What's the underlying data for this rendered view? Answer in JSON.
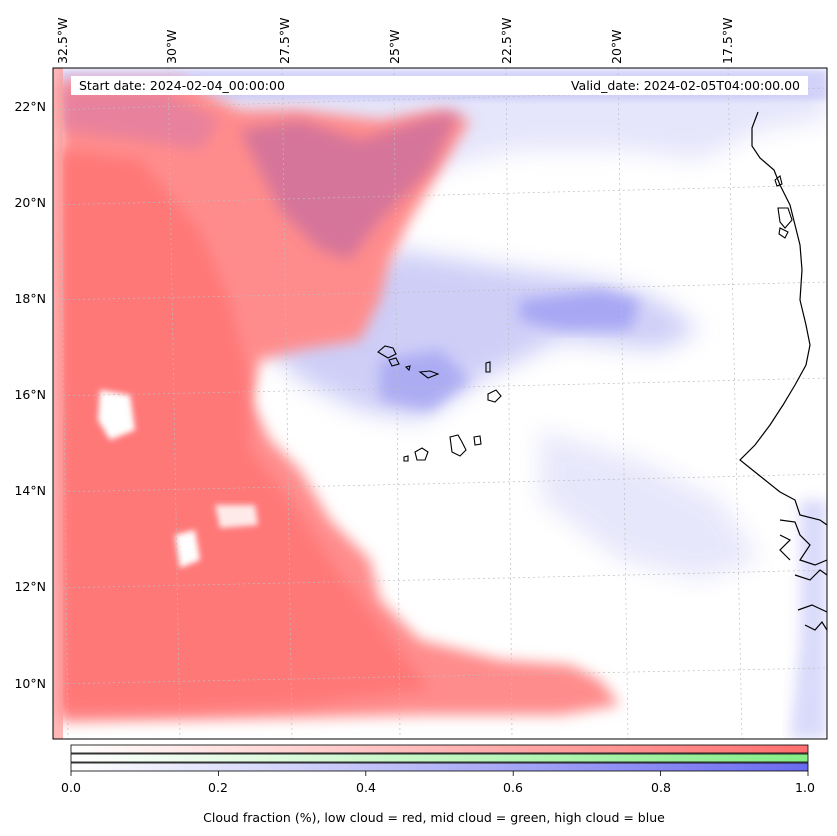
{
  "header": {
    "start_date": "Start date: 2024-02-04_00:00:00",
    "valid_date": "Valid_date: 2024-02-05T04:00:00.00"
  },
  "axes": {
    "longitude_labels": [
      "32.5°W",
      "30°W",
      "27.5°W",
      "25°W",
      "22.5°W",
      "20°W",
      "17.5°W"
    ],
    "latitude_labels": [
      "22°N",
      "20°N",
      "18°N",
      "16°N",
      "14°N",
      "12°N",
      "10°N"
    ]
  },
  "colorbar": {
    "tick_labels": [
      "0.0",
      "0.2",
      "0.4",
      "0.6",
      "0.8",
      "1.0"
    ],
    "tick_values": [
      0.0,
      0.2,
      0.4,
      0.6,
      0.8,
      1.0
    ],
    "label": "Cloud fraction (%), low cloud = red, mid cloud = green, high cloud = blue",
    "colors": {
      "low": "#ff6e6e",
      "mid": "#8ef08e",
      "high": "#7070f0"
    }
  },
  "layers": {
    "low_cloud_color": "#ff7f7f",
    "high_cloud_color": "#6b6bf2",
    "mid_cloud_color": "#8ef08e",
    "coastline_color": "#000000"
  }
}
